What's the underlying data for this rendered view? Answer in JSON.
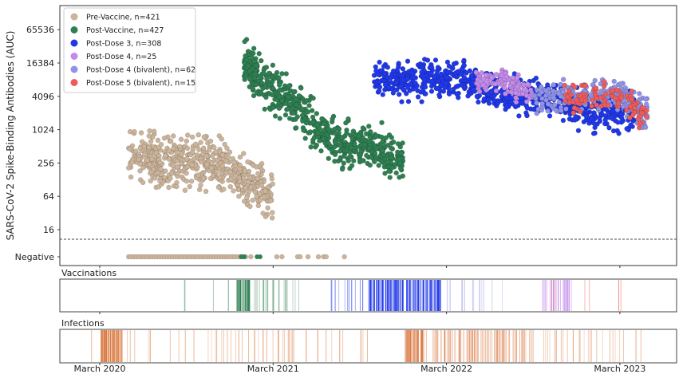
{
  "chart_data": {
    "type": "scatter",
    "ylabel": "SARS-CoV-2 Spike-Binding Antibodies (AUC)",
    "yscale": "log2",
    "yticks": [
      "65536",
      "16384",
      "4096",
      "1024",
      "256",
      "64",
      "16"
    ],
    "negative_label": "Negative",
    "xticks": [
      "March 2020",
      "March 2021",
      "March 2022",
      "March 2023"
    ],
    "xlim": [
      "2019-12",
      "2023-07"
    ],
    "threshold_line": "dashed",
    "legend_position": "top-left",
    "series": [
      {
        "name": "Pre-Vaccine, n=421",
        "color": "#ccb49b",
        "points": [
          [
            "2020-05",
            512
          ],
          [
            "2020-07",
            256
          ],
          [
            "2020-09",
            256
          ],
          [
            "2020-11",
            256
          ],
          [
            "2021-01",
            128
          ],
          [
            "2021-03",
            64
          ]
        ],
        "negatives": [
          "2020-05",
          "2021-08"
        ]
      },
      {
        "name": "Post-Vaccine, n=427",
        "color": "#2f7f52",
        "points": [
          [
            "2021-01",
            16384
          ],
          [
            "2021-02",
            8192
          ],
          [
            "2021-04",
            4096
          ],
          [
            "2021-06",
            1024
          ],
          [
            "2021-08",
            512
          ],
          [
            "2021-10",
            512
          ],
          [
            "2021-12",
            256
          ]
        ]
      },
      {
        "name": "Post-Dose 3, n=308",
        "color": "#2038e8",
        "points": [
          [
            "2021-10",
            8192
          ],
          [
            "2022-01",
            8192
          ],
          [
            "2022-04",
            8192
          ],
          [
            "2022-07",
            4096
          ],
          [
            "2022-10",
            4096
          ],
          [
            "2023-01",
            2048
          ],
          [
            "2023-04",
            2048
          ]
        ]
      },
      {
        "name": "Post-Dose 4, n=25",
        "color": "#c28ae9",
        "points": [
          [
            "2022-05",
            8192
          ],
          [
            "2022-07",
            8192
          ],
          [
            "2022-09",
            4096
          ]
        ]
      },
      {
        "name": "Post-Dose 4 (bivalent), n=62",
        "color": "#8f92e8",
        "points": [
          [
            "2022-09",
            4096
          ],
          [
            "2022-12",
            4096
          ],
          [
            "2023-03",
            4096
          ],
          [
            "2023-05",
            2048
          ]
        ]
      },
      {
        "name": "Post-Dose 5 (bivalent), n=15",
        "color": "#ee5b5b",
        "points": [
          [
            "2022-11",
            4096
          ],
          [
            "2023-02",
            4096
          ],
          [
            "2023-05",
            2048
          ]
        ]
      }
    ],
    "vaccinations": {
      "title": "Vaccinations",
      "events": [
        {
          "start": "2020-08-26",
          "end": "2020-12-10",
          "count": 4,
          "color": "#2f7f52",
          "opacity": 0.7
        },
        {
          "start": "2020-12-15",
          "end": "2021-01-13",
          "count": 30,
          "color": "#2f7f52",
          "opacity": 0.9
        },
        {
          "start": "2021-01-13",
          "end": "2021-04-25",
          "count": 25,
          "color": "#2f7f52",
          "opacity": 0.5
        },
        {
          "start": "2021-07-01",
          "end": "2021-09-15",
          "count": 14,
          "color": "#2038e8",
          "opacity": 0.6
        },
        {
          "start": "2021-09-18",
          "end": "2022-02-20",
          "count": 110,
          "color": "#2038e8",
          "opacity": 0.9
        },
        {
          "start": "2022-03-01",
          "end": "2022-07-01",
          "count": 14,
          "color": "#8f92e8",
          "opacity": 0.6
        },
        {
          "start": "2022-09-10",
          "end": "2022-11-26",
          "count": 30,
          "color": "#c28ae9",
          "opacity": 0.8
        },
        {
          "start": "2022-10-01",
          "end": "2023-04-20",
          "count": 6,
          "color": "#ee5b5b",
          "opacity": 0.7
        }
      ]
    },
    "infections": {
      "title": "Infections",
      "color": "#d9773e",
      "events": [
        {
          "start": "2020-02-10",
          "end": "2020-05-20",
          "count": 14,
          "opacity": 0.5
        },
        {
          "start": "2020-03-01",
          "end": "2020-04-20",
          "count": 40,
          "opacity": 0.9
        },
        {
          "start": "2020-06-01",
          "end": "2021-09-30",
          "count": 50,
          "opacity": 0.55
        },
        {
          "start": "2021-12-01",
          "end": "2022-01-20",
          "count": 40,
          "opacity": 0.9
        },
        {
          "start": "2022-02-01",
          "end": "2022-09-15",
          "count": 90,
          "opacity": 0.6
        },
        {
          "start": "2022-09-15",
          "end": "2023-04-20",
          "count": 30,
          "opacity": 0.5
        }
      ]
    }
  }
}
